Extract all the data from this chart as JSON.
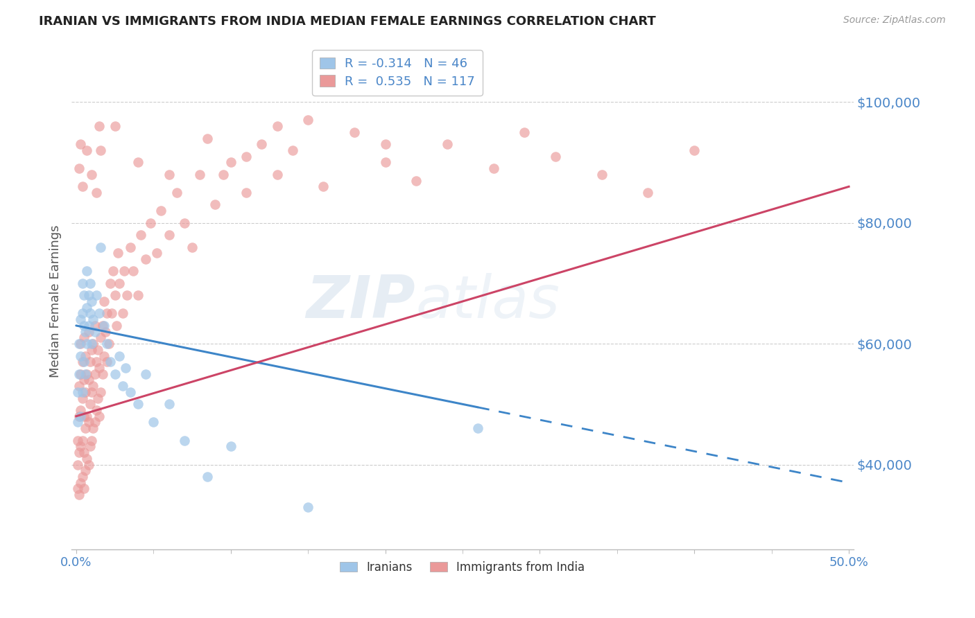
{
  "title": "IRANIAN VS IMMIGRANTS FROM INDIA MEDIAN FEMALE EARNINGS CORRELATION CHART",
  "source": "Source: ZipAtlas.com",
  "ylabel": "Median Female Earnings",
  "yticks": [
    40000,
    60000,
    80000,
    100000
  ],
  "ytick_labels": [
    "$40,000",
    "$60,000",
    "$80,000",
    "$100,000"
  ],
  "ylim": [
    26000,
    108000
  ],
  "xlim": [
    -0.003,
    0.503
  ],
  "legend_iranians_R": "-0.314",
  "legend_iranians_N": "46",
  "legend_india_R": "0.535",
  "legend_india_N": "117",
  "color_blue": "#9fc5e8",
  "color_pink": "#ea9999",
  "color_blue_line": "#3d85c8",
  "color_pink_line": "#cc4466",
  "color_text": "#4a86c8",
  "iranians_x": [
    0.001,
    0.001,
    0.002,
    0.002,
    0.003,
    0.003,
    0.003,
    0.004,
    0.004,
    0.004,
    0.005,
    0.005,
    0.005,
    0.006,
    0.006,
    0.007,
    0.007,
    0.007,
    0.008,
    0.008,
    0.009,
    0.009,
    0.01,
    0.01,
    0.011,
    0.012,
    0.013,
    0.015,
    0.016,
    0.018,
    0.02,
    0.022,
    0.025,
    0.028,
    0.03,
    0.032,
    0.035,
    0.04,
    0.045,
    0.05,
    0.06,
    0.07,
    0.085,
    0.1,
    0.15,
    0.26
  ],
  "iranians_y": [
    47000,
    52000,
    55000,
    60000,
    48000,
    58000,
    64000,
    52000,
    65000,
    70000,
    57000,
    63000,
    68000,
    55000,
    62000,
    60000,
    66000,
    72000,
    63000,
    68000,
    65000,
    70000,
    60000,
    67000,
    64000,
    62000,
    68000,
    65000,
    76000,
    63000,
    60000,
    57000,
    55000,
    58000,
    53000,
    56000,
    52000,
    50000,
    55000,
    47000,
    50000,
    44000,
    38000,
    43000,
    33000,
    46000
  ],
  "india_x": [
    0.001,
    0.001,
    0.001,
    0.002,
    0.002,
    0.002,
    0.002,
    0.003,
    0.003,
    0.003,
    0.003,
    0.003,
    0.004,
    0.004,
    0.004,
    0.004,
    0.005,
    0.005,
    0.005,
    0.005,
    0.005,
    0.006,
    0.006,
    0.006,
    0.006,
    0.007,
    0.007,
    0.007,
    0.008,
    0.008,
    0.008,
    0.008,
    0.009,
    0.009,
    0.009,
    0.01,
    0.01,
    0.01,
    0.011,
    0.011,
    0.011,
    0.012,
    0.012,
    0.012,
    0.013,
    0.013,
    0.014,
    0.014,
    0.015,
    0.015,
    0.016,
    0.016,
    0.017,
    0.017,
    0.018,
    0.018,
    0.019,
    0.02,
    0.02,
    0.021,
    0.022,
    0.023,
    0.024,
    0.025,
    0.026,
    0.027,
    0.028,
    0.03,
    0.031,
    0.033,
    0.035,
    0.037,
    0.04,
    0.042,
    0.045,
    0.048,
    0.052,
    0.055,
    0.06,
    0.065,
    0.07,
    0.075,
    0.08,
    0.09,
    0.1,
    0.11,
    0.12,
    0.13,
    0.14,
    0.16,
    0.18,
    0.2,
    0.22,
    0.24,
    0.27,
    0.29,
    0.31,
    0.34,
    0.37,
    0.4,
    0.13,
    0.095,
    0.015,
    0.003,
    0.002,
    0.004,
    0.007,
    0.01,
    0.013,
    0.016,
    0.025,
    0.04,
    0.06,
    0.085,
    0.11,
    0.15,
    0.2
  ],
  "india_y": [
    36000,
    40000,
    44000,
    35000,
    42000,
    48000,
    53000,
    37000,
    43000,
    49000,
    55000,
    60000,
    38000,
    44000,
    51000,
    57000,
    36000,
    42000,
    48000,
    54000,
    61000,
    39000,
    46000,
    52000,
    58000,
    41000,
    48000,
    55000,
    40000,
    47000,
    54000,
    62000,
    43000,
    50000,
    57000,
    44000,
    52000,
    59000,
    46000,
    53000,
    60000,
    47000,
    55000,
    63000,
    49000,
    57000,
    51000,
    59000,
    48000,
    56000,
    52000,
    61000,
    55000,
    63000,
    58000,
    67000,
    62000,
    57000,
    65000,
    60000,
    70000,
    65000,
    72000,
    68000,
    63000,
    75000,
    70000,
    65000,
    72000,
    68000,
    76000,
    72000,
    68000,
    78000,
    74000,
    80000,
    75000,
    82000,
    78000,
    85000,
    80000,
    76000,
    88000,
    83000,
    90000,
    85000,
    93000,
    88000,
    92000,
    86000,
    95000,
    90000,
    87000,
    93000,
    89000,
    95000,
    91000,
    88000,
    85000,
    92000,
    96000,
    88000,
    96000,
    93000,
    89000,
    86000,
    92000,
    88000,
    85000,
    92000,
    96000,
    90000,
    88000,
    94000,
    91000,
    97000,
    93000
  ],
  "background_color": "#ffffff",
  "grid_color": "#cccccc"
}
